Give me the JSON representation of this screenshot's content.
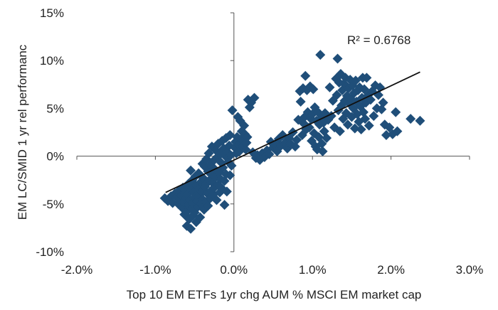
{
  "chart_data": {
    "type": "scatter",
    "title": "",
    "xlabel": "Top 10 EM ETFs 1yr chg AUM % MSCI EM market cap",
    "ylabel": "EM LC/SMID 1 yr rel performanc",
    "xlim": [
      -2.0,
      3.0
    ],
    "ylim": [
      -10,
      15
    ],
    "x_ticks": [
      -2.0,
      -1.0,
      0.0,
      1.0,
      2.0,
      3.0
    ],
    "x_tick_labels": [
      "-2.0%",
      "-1.0%",
      "0.0%",
      "1.0%",
      "2.0%",
      "3.0%"
    ],
    "y_ticks": [
      -10,
      -5,
      0,
      5,
      10,
      15
    ],
    "y_tick_labels": [
      "-10%",
      "-5%",
      "0%",
      "5%",
      "10%",
      "15%"
    ],
    "grid": false,
    "legend": "none",
    "marker": "diamond",
    "marker_color": "#1F4E79",
    "trendline": {
      "type": "linear",
      "x": [
        -0.87,
        2.37
      ],
      "y": [
        -3.8,
        8.8
      ],
      "color": "#111111"
    },
    "annotation": "R² = 0.6768",
    "series": [
      {
        "points": [
          [
            -0.88,
            -4.4
          ],
          [
            -0.84,
            -4.7
          ],
          [
            -0.8,
            -4.2
          ],
          [
            -0.78,
            -4.9
          ],
          [
            -0.75,
            -3.9
          ],
          [
            -0.73,
            -4.3
          ],
          [
            -0.71,
            -5.0
          ],
          [
            -0.7,
            -3.6
          ],
          [
            -0.69,
            -4.6
          ],
          [
            -0.67,
            -4.1
          ],
          [
            -0.66,
            -5.4
          ],
          [
            -0.65,
            -3.3
          ],
          [
            -0.64,
            -4.8
          ],
          [
            -0.63,
            -6.1
          ],
          [
            -0.62,
            -3.9
          ],
          [
            -0.61,
            -4.4
          ],
          [
            -0.6,
            -5.8
          ],
          [
            -0.6,
            -7.3
          ],
          [
            -0.59,
            -4.0
          ],
          [
            -0.58,
            -2.9
          ],
          [
            -0.58,
            -5.1
          ],
          [
            -0.57,
            -6.6
          ],
          [
            -0.56,
            -4.6
          ],
          [
            -0.56,
            -3.4
          ],
          [
            -0.55,
            -7.6
          ],
          [
            -0.55,
            -1.5
          ],
          [
            -0.54,
            -5.5
          ],
          [
            -0.53,
            -2.5
          ],
          [
            -0.53,
            -4.9
          ],
          [
            -0.52,
            -6.2
          ],
          [
            -0.51,
            -3.8
          ],
          [
            -0.5,
            -4.3
          ],
          [
            -0.5,
            -5.9
          ],
          [
            -0.49,
            -2.1
          ],
          [
            -0.48,
            -3.1
          ],
          [
            -0.48,
            -6.9
          ],
          [
            -0.47,
            -4.7
          ],
          [
            -0.46,
            -5.3
          ],
          [
            -0.45,
            -3.5
          ],
          [
            -0.45,
            -1.8
          ],
          [
            -0.44,
            -4.1
          ],
          [
            -0.43,
            -6.4
          ],
          [
            -0.42,
            -2.7
          ],
          [
            -0.42,
            -5.0
          ],
          [
            -0.41,
            -3.7
          ],
          [
            -0.4,
            -0.8
          ],
          [
            -0.4,
            -4.5
          ],
          [
            -0.39,
            -2.3
          ],
          [
            -0.38,
            -5.6
          ],
          [
            -0.37,
            -3.2
          ],
          [
            -0.37,
            -1.1
          ],
          [
            -0.36,
            -4.8
          ],
          [
            -0.35,
            -0.3
          ],
          [
            -0.35,
            -2.9
          ],
          [
            -0.34,
            -3.9
          ],
          [
            -0.33,
            -1.6
          ],
          [
            -0.33,
            -5.2
          ],
          [
            -0.32,
            0.3
          ],
          [
            -0.31,
            -2.5
          ],
          [
            -0.3,
            -4.4
          ],
          [
            -0.3,
            -0.9
          ],
          [
            -0.29,
            -3.6
          ],
          [
            -0.28,
            -1.9
          ],
          [
            -0.28,
            1.0
          ],
          [
            -0.27,
            -2.8
          ],
          [
            -0.26,
            -4.0
          ],
          [
            -0.25,
            -0.4
          ],
          [
            -0.25,
            -3.3
          ],
          [
            -0.24,
            -1.4
          ],
          [
            -0.23,
            0.6
          ],
          [
            -0.23,
            -2.2
          ],
          [
            -0.22,
            -4.6
          ],
          [
            -0.21,
            -0.1
          ],
          [
            -0.2,
            -3.0
          ],
          [
            -0.2,
            1.3
          ],
          [
            -0.19,
            -1.7
          ],
          [
            -0.18,
            -3.8
          ],
          [
            -0.18,
            0.2
          ],
          [
            -0.17,
            -2.4
          ],
          [
            -0.16,
            -0.7
          ],
          [
            -0.15,
            1.6
          ],
          [
            -0.15,
            -3.4
          ],
          [
            -0.14,
            -1.2
          ],
          [
            -0.13,
            0.8
          ],
          [
            -0.12,
            -2.6
          ],
          [
            -0.12,
            -5.1
          ],
          [
            -0.11,
            0.0
          ],
          [
            -0.1,
            1.9
          ],
          [
            -0.1,
            -1.9
          ],
          [
            -0.09,
            -3.7
          ],
          [
            -0.08,
            0.4
          ],
          [
            -0.07,
            -0.6
          ],
          [
            -0.06,
            1.1
          ],
          [
            -0.05,
            -2.0
          ],
          [
            -0.05,
            2.2
          ],
          [
            -0.04,
            0.1
          ],
          [
            -0.03,
            -1.0
          ],
          [
            -0.02,
            4.8
          ],
          [
            0.01,
            0.9
          ],
          [
            0.02,
            1.5
          ],
          [
            0.03,
            0.3
          ],
          [
            0.04,
            2.0
          ],
          [
            0.05,
            4.1
          ],
          [
            0.06,
            1.2
          ],
          [
            0.07,
            0.5
          ],
          [
            0.08,
            3.7
          ],
          [
            0.09,
            1.8
          ],
          [
            0.1,
            2.6
          ],
          [
            0.11,
            1.0
          ],
          [
            0.12,
            1.6
          ],
          [
            0.13,
            3.2
          ],
          [
            0.14,
            2.3
          ],
          [
            0.15,
            0.7
          ],
          [
            0.16,
            1.4
          ],
          [
            0.17,
            2.0
          ],
          [
            0.18,
            5.9
          ],
          [
            0.2,
            5.1
          ],
          [
            0.22,
            5.6
          ],
          [
            0.24,
            0.4
          ],
          [
            0.26,
            6.1
          ],
          [
            0.28,
            -0.2
          ],
          [
            0.3,
            0.1
          ],
          [
            0.33,
            -0.4
          ],
          [
            0.36,
            0.3
          ],
          [
            0.39,
            -0.1
          ],
          [
            0.42,
            0.6
          ],
          [
            0.45,
            0.2
          ],
          [
            0.47,
            1.5
          ],
          [
            0.5,
            0.9
          ],
          [
            0.52,
            1.2
          ],
          [
            0.55,
            0.5
          ],
          [
            0.57,
            1.8
          ],
          [
            0.6,
            1.1
          ],
          [
            0.62,
            2.2
          ],
          [
            0.65,
            1.4
          ],
          [
            0.68,
            0.8
          ],
          [
            0.7,
            1.9
          ],
          [
            0.72,
            1.3
          ],
          [
            0.75,
            2.5
          ],
          [
            0.78,
            1.0
          ],
          [
            0.8,
            1.7
          ],
          [
            0.82,
            3.8
          ],
          [
            0.84,
            6.8
          ],
          [
            0.85,
            5.7
          ],
          [
            0.87,
            2.2
          ],
          [
            0.88,
            7.1
          ],
          [
            0.89,
            3.4
          ],
          [
            0.9,
            4.1
          ],
          [
            0.91,
            8.4
          ],
          [
            0.92,
            2.8
          ],
          [
            0.93,
            6.9
          ],
          [
            0.94,
            4.6
          ],
          [
            0.96,
            3.0
          ],
          [
            0.97,
            7.3
          ],
          [
            0.98,
            3.9
          ],
          [
            0.99,
            1.6
          ],
          [
            1.0,
            4.4
          ],
          [
            1.01,
            7.0
          ],
          [
            1.02,
            2.4
          ],
          [
            1.03,
            5.1
          ],
          [
            1.04,
            1.0
          ],
          [
            1.05,
            3.7
          ],
          [
            1.06,
            0.7
          ],
          [
            1.07,
            4.6
          ],
          [
            1.08,
            2.0
          ],
          [
            1.09,
            3.3
          ],
          [
            1.1,
            10.6
          ],
          [
            1.11,
            4.0
          ],
          [
            1.12,
            1.3
          ],
          [
            1.13,
            0.5
          ],
          [
            1.14,
            3.5
          ],
          [
            1.15,
            2.6
          ],
          [
            1.16,
            4.5
          ],
          [
            1.18,
            1.9
          ],
          [
            1.2,
            3.8
          ],
          [
            1.22,
            7.2
          ],
          [
            1.24,
            4.2
          ],
          [
            1.26,
            5.8
          ],
          [
            1.28,
            3.0
          ],
          [
            1.3,
            8.1
          ],
          [
            1.31,
            6.4
          ],
          [
            1.32,
            10.2
          ],
          [
            1.33,
            4.8
          ],
          [
            1.34,
            7.7
          ],
          [
            1.35,
            2.6
          ],
          [
            1.36,
            8.6
          ],
          [
            1.37,
            5.3
          ],
          [
            1.38,
            6.9
          ],
          [
            1.39,
            3.9
          ],
          [
            1.4,
            7.6
          ],
          [
            1.41,
            5.8
          ],
          [
            1.42,
            8.2
          ],
          [
            1.43,
            4.5
          ],
          [
            1.44,
            6.3
          ],
          [
            1.45,
            3.3
          ],
          [
            1.46,
            7.1
          ],
          [
            1.47,
            5.5
          ],
          [
            1.48,
            8.0
          ],
          [
            1.49,
            6.0
          ],
          [
            1.5,
            4.1
          ],
          [
            1.51,
            7.4
          ],
          [
            1.52,
            5.0
          ],
          [
            1.53,
            6.6
          ],
          [
            1.54,
            2.9
          ],
          [
            1.55,
            7.9
          ],
          [
            1.56,
            5.7
          ],
          [
            1.57,
            4.4
          ],
          [
            1.58,
            6.9
          ],
          [
            1.59,
            3.6
          ],
          [
            1.6,
            7.2
          ],
          [
            1.61,
            5.2
          ],
          [
            1.62,
            2.8
          ],
          [
            1.63,
            6.1
          ],
          [
            1.64,
            8.2
          ],
          [
            1.65,
            4.6
          ],
          [
            1.66,
            7.0
          ],
          [
            1.67,
            3.9
          ],
          [
            1.68,
            5.6
          ],
          [
            1.69,
            8.2
          ],
          [
            1.7,
            6.3
          ],
          [
            1.72,
            3.2
          ],
          [
            1.74,
            5.9
          ],
          [
            1.76,
            6.8
          ],
          [
            1.78,
            4.2
          ],
          [
            1.8,
            7.4
          ],
          [
            1.82,
            5.0
          ],
          [
            1.84,
            6.4
          ],
          [
            1.86,
            7.2
          ],
          [
            1.88,
            4.9
          ],
          [
            1.9,
            5.6
          ],
          [
            1.92,
            3.3
          ],
          [
            1.94,
            2.2
          ],
          [
            1.98,
            3.0
          ],
          [
            2.02,
            2.3
          ],
          [
            2.06,
            4.6
          ],
          [
            2.08,
            2.6
          ],
          [
            2.25,
            3.9
          ],
          [
            2.37,
            3.7
          ]
        ]
      }
    ]
  }
}
